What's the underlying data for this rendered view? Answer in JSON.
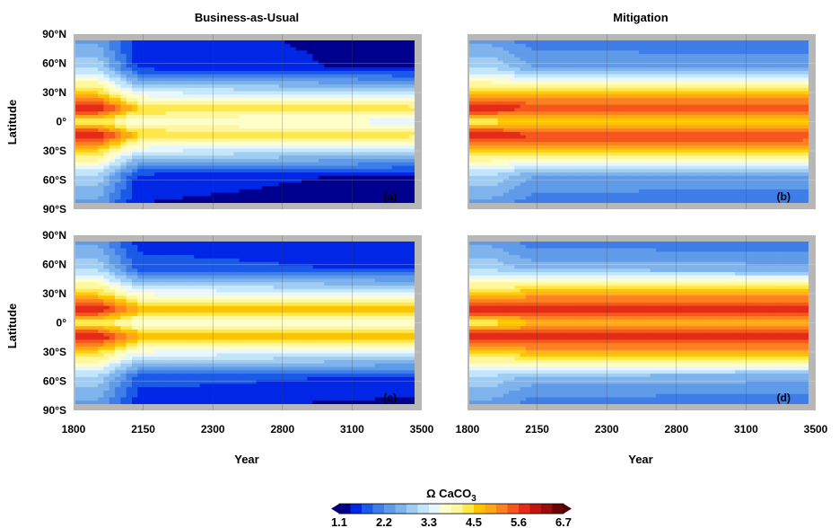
{
  "panels": [
    {
      "id": "a",
      "label": "(a)",
      "column_title": "Business-as-Usual",
      "scenario": "bau",
      "row": 0
    },
    {
      "id": "b",
      "label": "(b)",
      "column_title": "Mitigation",
      "scenario": "mit",
      "row": 0
    },
    {
      "id": "c",
      "label": "(c)",
      "column_title": "",
      "scenario": "bau",
      "row": 1
    },
    {
      "id": "d",
      "label": "(d)",
      "column_title": "",
      "scenario": "mit",
      "row": 1
    }
  ],
  "chart_data": {
    "type": "heatmap",
    "title": "",
    "column_titles": [
      "Business-as-Usual",
      "Mitigation"
    ],
    "xlabel": "Year",
    "ylabel": "Latitude",
    "x_ticks": [
      "1800",
      "2150",
      "2300",
      "2800",
      "3100",
      "3500"
    ],
    "y_ticks": [
      "90°N",
      "60°N",
      "30°N",
      "0°",
      "30°S",
      "60°S",
      "90°S"
    ],
    "y_tick_values": [
      90,
      60,
      30,
      0,
      -30,
      -60,
      -90
    ],
    "ylim": [
      -90,
      90
    ],
    "grid": true,
    "colorbar": {
      "title": "Ω CaCO3",
      "tick_labels": [
        "1.1",
        "2.2",
        "3.3",
        "4.5",
        "5.6",
        "6.7"
      ],
      "range": [
        1.1,
        6.7
      ],
      "extend": "both",
      "colors": [
        "#00008f",
        "#0026e6",
        "#1a5ae8",
        "#3f7ee8",
        "#5f9be8",
        "#7fb3ec",
        "#a0cdf3",
        "#c4e6fa",
        "#e8f7ff",
        "#fefec8",
        "#fff7a0",
        "#ffe94a",
        "#ffc400",
        "#ffa61a",
        "#ff8020",
        "#f7561c",
        "#e42a18",
        "#c21512",
        "#9a0c0c",
        "#6a0404"
      ],
      "under_color": "#00007a",
      "over_color": "#5a0000"
    },
    "series": [
      {
        "panel": "a",
        "x_start": "1800",
        "x_end": "3500",
        "omega_by_latitude_start": {
          "90N": 2.4,
          "60N": 3.0,
          "30N": 4.6,
          "15N": 6.0,
          "0": 4.2,
          "15S": 6.0,
          "30S": 4.6,
          "60S": 3.0,
          "90S": 2.4
        },
        "omega_by_latitude_end": {
          "90N": 1.3,
          "60N": 1.3,
          "30N": 3.3,
          "15N": 4.3,
          "0": 3.5,
          "15S": 4.3,
          "30S": 3.3,
          "60S": 1.3,
          "90S": 1.2
        }
      },
      {
        "panel": "b",
        "x_start": "1800",
        "x_end": "3500",
        "omega_by_latitude_start": {
          "90N": 2.4,
          "60N": 3.0,
          "30N": 4.6,
          "15N": 6.0,
          "0": 4.2,
          "15S": 6.0,
          "30S": 4.6,
          "60S": 3.0,
          "90S": 2.4
        },
        "omega_by_latitude_end": {
          "90N": 2.0,
          "60N": 2.4,
          "30N": 4.8,
          "15N": 5.5,
          "0": 4.6,
          "15S": 5.6,
          "30S": 4.8,
          "60S": 2.4,
          "90S": 2.0
        }
      },
      {
        "panel": "c",
        "x_start": "1800",
        "x_end": "3500",
        "omega_by_latitude_start": {
          "90N": 2.4,
          "60N": 3.0,
          "30N": 4.6,
          "15N": 6.0,
          "0": 4.2,
          "15S": 6.0,
          "30S": 4.6,
          "60S": 3.0,
          "90S": 2.4
        },
        "omega_by_latitude_end": {
          "90N": 1.4,
          "60N": 1.6,
          "30N": 3.6,
          "15N": 4.6,
          "0": 3.6,
          "15S": 4.6,
          "30S": 3.6,
          "60S": 1.6,
          "90S": 1.3
        }
      },
      {
        "panel": "d",
        "x_start": "1800",
        "x_end": "3500",
        "omega_by_latitude_start": {
          "90N": 2.4,
          "60N": 3.0,
          "30N": 4.6,
          "15N": 6.0,
          "0": 4.2,
          "15S": 6.0,
          "30S": 4.6,
          "60S": 3.0,
          "90S": 2.4
        },
        "omega_by_latitude_end": {
          "90N": 2.0,
          "60N": 2.6,
          "30N": 5.0,
          "15N": 5.8,
          "0": 4.7,
          "15S": 5.8,
          "30S": 5.0,
          "60S": 2.6,
          "90S": 2.0
        }
      }
    ]
  }
}
